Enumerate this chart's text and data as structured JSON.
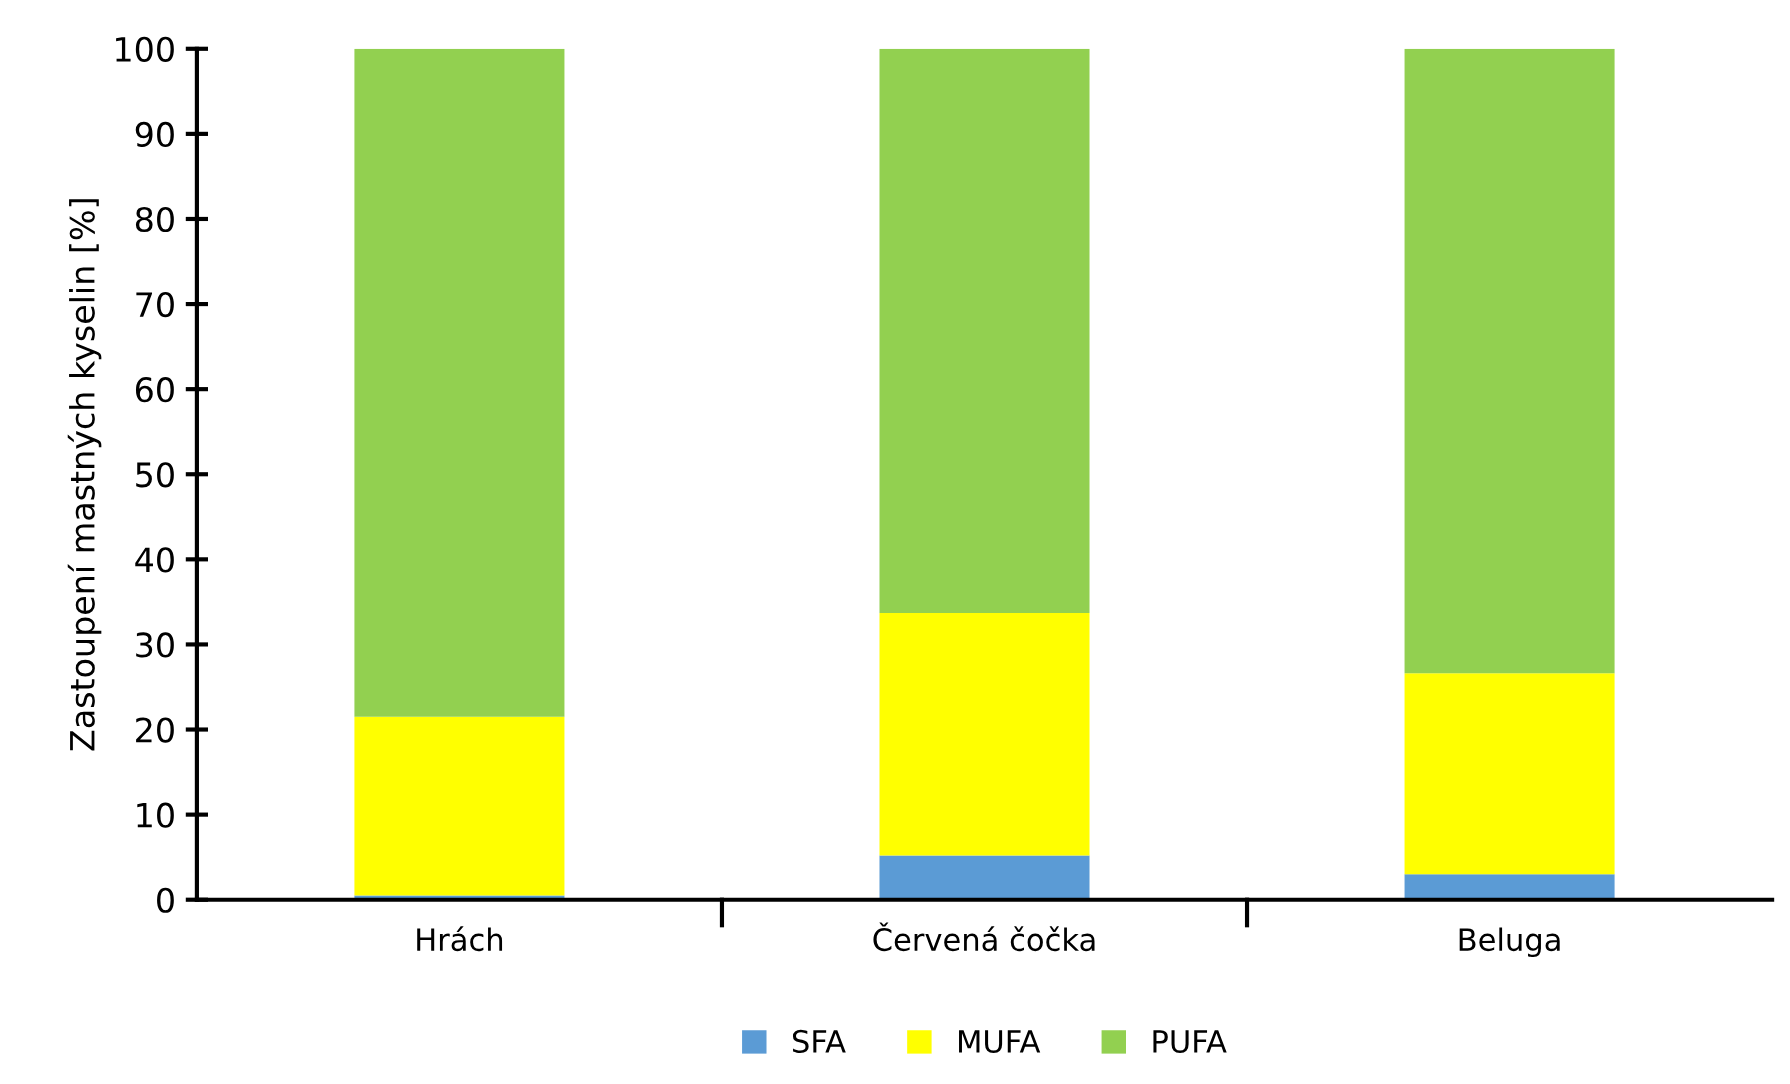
{
  "chart_data": {
    "type": "bar",
    "stacked": true,
    "ylabel": "Zastoupení mastných kyselin [%]",
    "categories": [
      "Hrách",
      "Červená čočka",
      "Beluga"
    ],
    "series": [
      {
        "name": "SFA",
        "color": "#5b9bd5",
        "values": [
          0.5,
          5.2,
          3.0
        ]
      },
      {
        "name": "MUFA",
        "color": "#ffff00",
        "values": [
          21.0,
          28.5,
          23.6
        ]
      },
      {
        "name": "PUFA",
        "color": "#92d050",
        "values": [
          78.5,
          66.3,
          73.4
        ]
      }
    ],
    "ylim": [
      0,
      100
    ],
    "yticks": [
      0,
      10,
      20,
      30,
      40,
      50,
      60,
      70,
      80,
      90,
      100
    ],
    "grid": false,
    "legend": "bottom"
  }
}
